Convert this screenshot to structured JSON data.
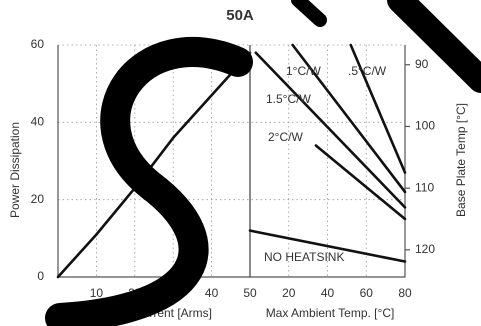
{
  "title": "50A",
  "chart_data": [
    {
      "type": "line",
      "xlabel": "Load Current [Arms]",
      "ylabel": "Power Dissipation",
      "xlim": [
        0,
        50
      ],
      "xticks": [
        10,
        20,
        30,
        40,
        50
      ],
      "ylim": [
        0,
        60
      ],
      "yticks": [
        0,
        20,
        40,
        60
      ],
      "grid": true,
      "series": [
        {
          "color": "#111111",
          "x": [
            0,
            10,
            20,
            30,
            40,
            50
          ],
          "values": [
            0,
            11,
            23,
            36,
            47,
            58
          ]
        }
      ]
    },
    {
      "type": "line",
      "xlabel": "Max Ambient Temp. [°C]",
      "y2label": "Base Plate Temp [°C]",
      "xlim": [
        0,
        80
      ],
      "xticks": [
        20,
        40,
        60,
        80
      ],
      "ylim": [
        0,
        60
      ],
      "y2lim": [
        124.4,
        86.8
      ],
      "y2ticks": [
        90,
        100,
        110,
        120
      ],
      "grid": true,
      "series": [
        {
          "name": ".5°C/W",
          "color": "#111111",
          "x": [
            52,
            80
          ],
          "values": [
            60,
            27
          ]
        },
        {
          "name": "1°C/W",
          "color": "#111111",
          "x": [
            22,
            80
          ],
          "values": [
            60,
            22
          ]
        },
        {
          "name": "1.5°C/W",
          "color": "#111111",
          "x": [
            3,
            80
          ],
          "values": [
            58,
            18
          ]
        },
        {
          "name": "2°C/W",
          "color": "#111111",
          "x": [
            34,
            80
          ],
          "values": [
            34,
            15
          ]
        },
        {
          "name": "NO HEATSINK",
          "color": "#111111",
          "x": [
            0,
            80
          ],
          "values": [
            12,
            4
          ]
        }
      ]
    }
  ]
}
